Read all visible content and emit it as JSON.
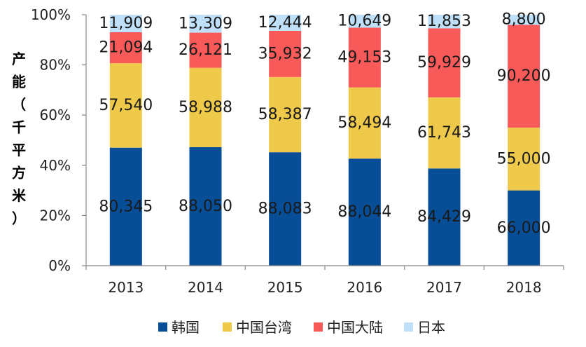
{
  "chart_data": {
    "type": "bar",
    "stacked": true,
    "normalized": true,
    "categories": [
      "2013",
      "2014",
      "2015",
      "2016",
      "2017",
      "2018"
    ],
    "series": [
      {
        "name": "韩国",
        "color": "#074e96",
        "values": [
          80345,
          88050,
          88083,
          88044,
          84429,
          66000
        ],
        "labels": [
          "80,345",
          "88,050",
          "88,083",
          "88,044",
          "84,429",
          "66,000"
        ]
      },
      {
        "name": "中国台湾",
        "color": "#eec94a",
        "values": [
          57540,
          58988,
          58387,
          58494,
          61743,
          55000
        ],
        "labels": [
          "57,540",
          "58,988",
          "58,387",
          "58,494",
          "61,743",
          "55,000"
        ]
      },
      {
        "name": "中国大陆",
        "color": "#f85a5a",
        "values": [
          21094,
          26121,
          35932,
          49153,
          59929,
          90200
        ],
        "labels": [
          "21,094",
          "26,121",
          "35,932",
          "49,153",
          "59,929",
          "90,200"
        ]
      },
      {
        "name": "日本",
        "color": "#bfe0f8",
        "values": [
          11909,
          13309,
          12444,
          10649,
          11853,
          8800
        ],
        "labels": [
          "11,909",
          "13,309",
          "12,444",
          "10,649",
          "11,853",
          "8,800"
        ]
      }
    ],
    "ylabel": "产能（千平方米）",
    "ylabel_chars": [
      "产",
      "能",
      "（",
      "千",
      "平",
      "方",
      "米",
      "）"
    ],
    "yticks": [
      "0%",
      "20%",
      "40%",
      "60%",
      "80%",
      "100%"
    ],
    "ylim": [
      0,
      100
    ],
    "legend_position": "bottom",
    "grid": false
  }
}
